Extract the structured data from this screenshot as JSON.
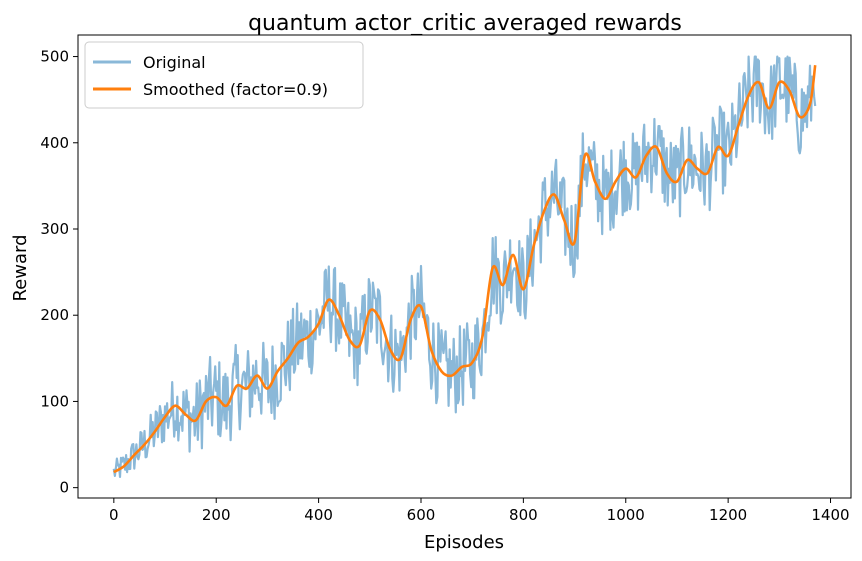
{
  "chart_data": {
    "type": "line",
    "title": "quantum actor_critic averaged rewards",
    "xlabel": "Episodes",
    "ylabel": "Reward",
    "xlim": [
      -70,
      1440
    ],
    "ylim": [
      -12,
      525
    ],
    "xticks": [
      0,
      200,
      400,
      600,
      800,
      1000,
      1200,
      1400
    ],
    "yticks": [
      0,
      100,
      200,
      300,
      400,
      500
    ],
    "grid": false,
    "legend_position": "top-left",
    "original_noise_amplitude": 50,
    "series": [
      {
        "name": "Original",
        "color": "#8ab8d8",
        "style": "noisy",
        "x": [
          0,
          20,
          40,
          60,
          80,
          100,
          120,
          140,
          160,
          180,
          200,
          220,
          240,
          260,
          280,
          300,
          320,
          340,
          360,
          380,
          400,
          420,
          440,
          460,
          480,
          500,
          520,
          540,
          560,
          580,
          600,
          620,
          640,
          660,
          680,
          700,
          720,
          740,
          760,
          780,
          800,
          820,
          840,
          860,
          880,
          900,
          920,
          940,
          960,
          980,
          1000,
          1020,
          1040,
          1060,
          1080,
          1100,
          1120,
          1140,
          1160,
          1180,
          1200,
          1220,
          1240,
          1260,
          1280,
          1300,
          1320,
          1340,
          1360,
          1370
        ],
        "y": [
          18,
          25,
          38,
          50,
          65,
          82,
          95,
          85,
          78,
          100,
          105,
          95,
          118,
          115,
          130,
          115,
          135,
          150,
          168,
          175,
          190,
          218,
          200,
          172,
          165,
          205,
          195,
          160,
          150,
          195,
          210,
          160,
          135,
          130,
          140,
          145,
          175,
          255,
          235,
          270,
          230,
          280,
          320,
          340,
          310,
          285,
          385,
          355,
          335,
          355,
          370,
          360,
          385,
          395,
          365,
          355,
          380,
          370,
          365,
          395,
          385,
          420,
          455,
          470,
          440,
          470,
          460,
          430,
          445,
          490
        ]
      },
      {
        "name": "Smoothed (factor=0.9)",
        "color": "#ff7f0e",
        "style": "smooth",
        "x": [
          0,
          20,
          40,
          60,
          80,
          100,
          120,
          140,
          160,
          180,
          200,
          220,
          240,
          260,
          280,
          300,
          320,
          340,
          360,
          380,
          400,
          420,
          440,
          460,
          480,
          500,
          520,
          540,
          560,
          580,
          600,
          620,
          640,
          660,
          680,
          700,
          720,
          740,
          760,
          780,
          800,
          820,
          840,
          860,
          880,
          900,
          920,
          940,
          960,
          980,
          1000,
          1020,
          1040,
          1060,
          1080,
          1100,
          1120,
          1140,
          1160,
          1180,
          1200,
          1220,
          1240,
          1260,
          1280,
          1300,
          1320,
          1340,
          1360,
          1370
        ],
        "y": [
          18,
          25,
          38,
          50,
          65,
          82,
          95,
          85,
          78,
          100,
          105,
          95,
          118,
          115,
          130,
          115,
          135,
          150,
          168,
          175,
          190,
          218,
          200,
          172,
          165,
          205,
          195,
          160,
          150,
          195,
          210,
          160,
          135,
          130,
          140,
          145,
          175,
          255,
          235,
          270,
          230,
          280,
          320,
          340,
          310,
          285,
          385,
          355,
          335,
          355,
          370,
          360,
          385,
          395,
          365,
          355,
          380,
          370,
          365,
          395,
          385,
          420,
          455,
          470,
          440,
          470,
          460,
          430,
          445,
          490
        ]
      }
    ]
  }
}
